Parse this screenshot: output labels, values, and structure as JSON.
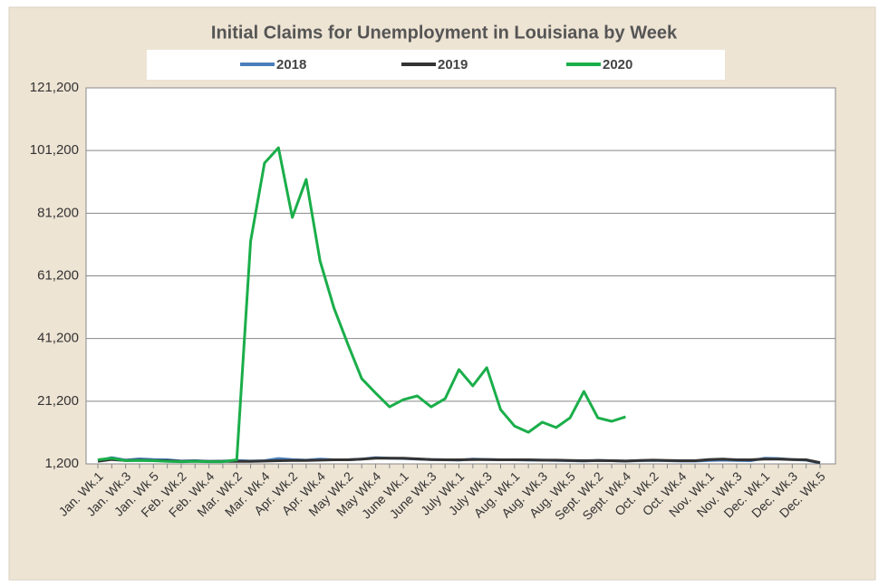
{
  "chart_data": {
    "type": "line",
    "title": "Initial Claims for Unemployment  in Louisiana by Week",
    "categories": [
      "Jan. Wk.1",
      null,
      "Jan. Wk.3",
      null,
      "Jan. Wk 5",
      null,
      "Feb. Wk.2",
      null,
      "Feb. Wk.4",
      null,
      "Mar. Wk.2",
      null,
      "Mar. Wk.4",
      null,
      "Apr. Wk.2",
      null,
      "Apr. Wk.4",
      null,
      "May Wk.2",
      null,
      "May Wk.4",
      null,
      "June Wk.1",
      null,
      "June Wk.3",
      null,
      "July Wk.1",
      null,
      "July Wk.3",
      null,
      "Aug. Wk.1",
      null,
      "Aug. Wk.3",
      null,
      "Aug. Wk.5",
      null,
      "Sept. Wk.2",
      null,
      "Sept. Wk.4",
      null,
      "Oct. Wk.2",
      null,
      "Oct. Wk.4",
      null,
      "Nov. Wk.1",
      null,
      "Nov. Wk.3",
      null,
      "Dec. Wk.1",
      null,
      "Dec. Wk.3",
      null,
      "Dec. Wk.5"
    ],
    "series": [
      {
        "name": "2018",
        "color": "#4a7ebb",
        "values": [
          2200,
          3200,
          2400,
          2800,
          2600,
          2500,
          2100,
          2200,
          2000,
          2100,
          2300,
          2100,
          2200,
          2900,
          2600,
          2400,
          2700,
          2500,
          2500,
          2700,
          3200,
          3000,
          2900,
          2700,
          2600,
          2500,
          2400,
          2700,
          2600,
          2500,
          2500,
          2400,
          2400,
          2300,
          2200,
          2100,
          2300,
          2200,
          2100,
          2200,
          2300,
          2200,
          2100,
          2100,
          2300,
          2400,
          2300,
          2200,
          3000,
          2900,
          2600,
          2400,
          1500
        ]
      },
      {
        "name": "2019",
        "color": "#333333",
        "values": [
          2000,
          2600,
          2300,
          2400,
          2300,
          2200,
          2000,
          2100,
          2000,
          2000,
          2000,
          2000,
          2100,
          2200,
          2300,
          2300,
          2400,
          2500,
          2500,
          2700,
          3000,
          3000,
          3000,
          2800,
          2600,
          2500,
          2500,
          2600,
          2600,
          2500,
          2500,
          2500,
          2400,
          2400,
          2300,
          2200,
          2300,
          2200,
          2100,
          2300,
          2400,
          2300,
          2200,
          2200,
          2600,
          2700,
          2500,
          2500,
          2700,
          2700,
          2600,
          2500,
          1600
        ]
      },
      {
        "name": "2020",
        "color": "#1aae4a",
        "values": [
          2500,
          3000,
          2200,
          2300,
          2200,
          2000,
          1900,
          2000,
          1900,
          1900,
          2500,
          72300,
          97200,
          102100,
          79850,
          92000,
          66000,
          50900,
          39400,
          28400,
          23800,
          19400,
          21700,
          22900,
          19400,
          22000,
          31300,
          26100,
          31900,
          18500,
          13300,
          11300,
          14500,
          12800,
          15900,
          24300,
          15900,
          14800,
          16200,
          null,
          null,
          null,
          null,
          null,
          null,
          null,
          null,
          null,
          null,
          null,
          null,
          null,
          null
        ]
      }
    ],
    "ylim": [
      1200,
      121200
    ],
    "yticks": [
      {
        "value": 1200,
        "label": "1,200"
      },
      {
        "value": 21200,
        "label": "21,200"
      },
      {
        "value": 41200,
        "label": "41,200"
      },
      {
        "value": 61200,
        "label": "61,200"
      },
      {
        "value": 81200,
        "label": "81,200"
      },
      {
        "value": 101200,
        "label": "101,200"
      },
      {
        "value": 121200,
        "label": "121,200"
      }
    ],
    "grid": true,
    "legend": "top"
  }
}
